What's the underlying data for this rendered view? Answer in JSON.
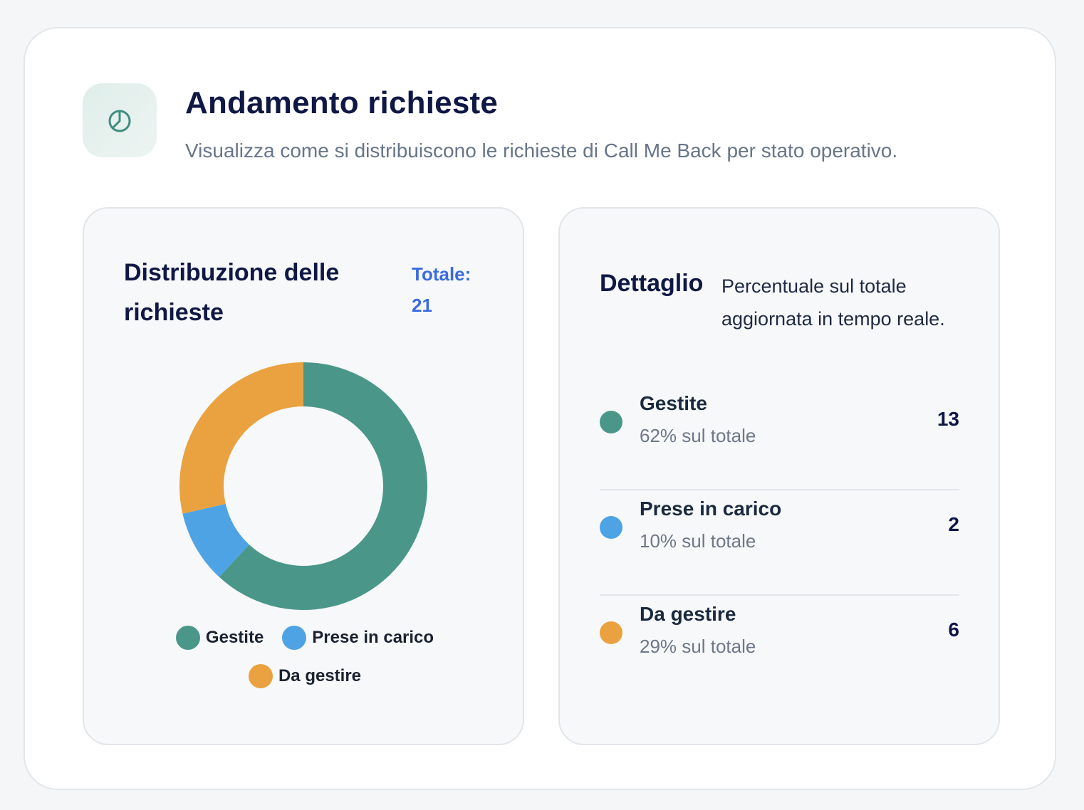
{
  "header": {
    "icon": "pie-chart-icon",
    "title": "Andamento richieste",
    "subtitle": "Visualizza come si distribuiscono le richieste di Call Me Back per stato operativo."
  },
  "distribution": {
    "title": "Distribuzione delle richieste",
    "total_label": "Totale:",
    "total_value": "21"
  },
  "chart_data": {
    "type": "pie",
    "categories": [
      "Gestite",
      "Prese in carico",
      "Da gestire"
    ],
    "values": [
      13,
      2,
      6
    ],
    "colors": [
      "#4a978a",
      "#4ea3e4",
      "#e9a23f"
    ],
    "donut": true,
    "legend": "bottom"
  },
  "detail": {
    "title": "Dettaglio",
    "description": "Percentuale sul totale aggiornata in tempo reale.",
    "rows": [
      {
        "label": "Gestite",
        "sub": "62% sul totale",
        "value": "13",
        "color": "#4a978a"
      },
      {
        "label": "Prese in carico",
        "sub": "10% sul totale",
        "value": "2",
        "color": "#4ea3e4"
      },
      {
        "label": "Da gestire",
        "sub": "29% sul totale",
        "value": "6",
        "color": "#e9a23f"
      }
    ]
  }
}
